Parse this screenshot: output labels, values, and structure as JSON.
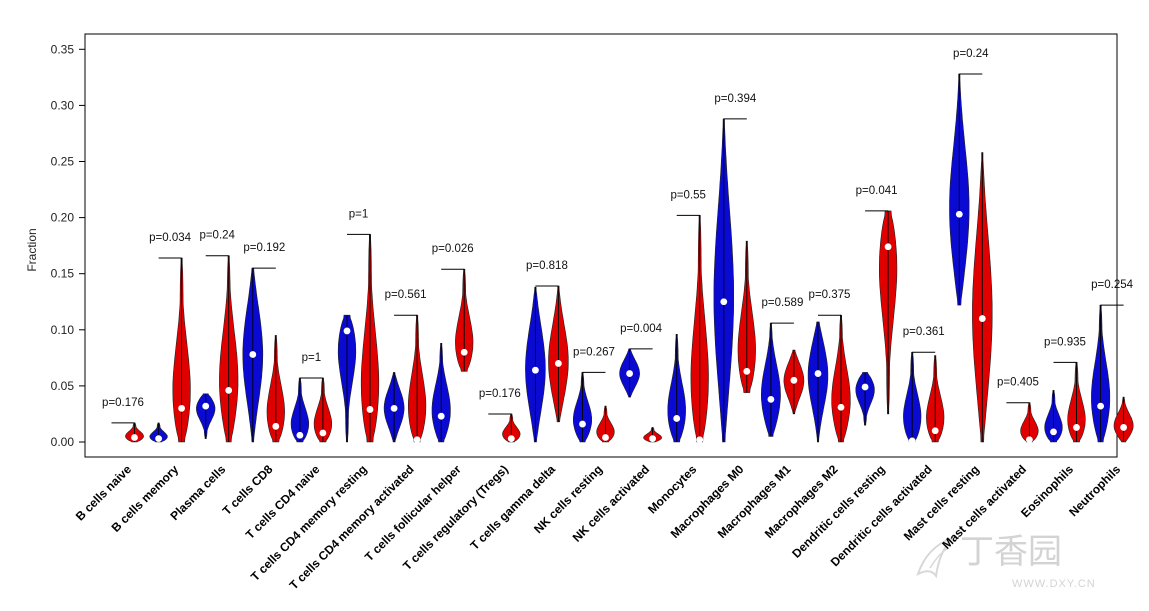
{
  "chart_data": {
    "type": "violin",
    "ylabel": "Fraction",
    "ylim": [
      0,
      0.36
    ],
    "yticks": [
      "0.00",
      "0.05",
      "0.10",
      "0.15",
      "0.20",
      "0.25",
      "0.30",
      "0.35"
    ],
    "grid": false,
    "colors": {
      "group1": "#0a0ad2",
      "group2": "#e00000"
    },
    "categories": [
      "B cells naive",
      "B cells memory",
      "Plasma cells",
      "T cells CD8",
      "T cells CD4 naive",
      "T cells CD4 memory resting",
      "T cells CD4 memory activated",
      "T cells follicular helper",
      "T cells regulatory (Tregs)",
      "T cells gamma delta",
      "NK cells resting",
      "NK cells activated",
      "Monocytes",
      "Macrophages M0",
      "Macrophages M1",
      "Macrophages M2",
      "Dendritic cells resting",
      "Dendritic cells activated",
      "Mast cells resting",
      "Mast cells activated",
      "Eosinophils",
      "Neutrophils"
    ],
    "pvalues": [
      "p=0.176",
      "p=0.034",
      "p=0.24",
      "p=0.192",
      "p=1",
      "p=1",
      "p=0.561",
      "p=0.026",
      "p=0.176",
      "p=0.818",
      "p=0.267",
      "p=0.004",
      "p=0.55",
      "p=0.394",
      "p=0.589",
      "p=0.375",
      "p=0.041",
      "p=0.361",
      "p=0.24",
      "p=0.405",
      "p=0.935",
      "p=0.254"
    ],
    "series": [
      {
        "min": [
          0,
          0,
          0.003,
          0,
          0,
          0,
          0,
          0,
          0,
          0,
          0,
          0.04,
          0,
          0,
          0.005,
          0,
          0.015,
          0,
          0.122,
          0,
          0,
          0
        ],
        "max": [
          0,
          0.017,
          0.043,
          0.155,
          0.057,
          0.113,
          0.062,
          0.088,
          0,
          0.138,
          0.062,
          0.083,
          0.096,
          0.288,
          0.106,
          0.107,
          0.062,
          0.08,
          0.328,
          0,
          0.046,
          0.122
        ],
        "median": [
          0,
          0.003,
          0.032,
          0.078,
          0.006,
          0.099,
          0.03,
          0.023,
          0,
          0.064,
          0.016,
          0.061,
          0.021,
          0.125,
          0.038,
          0.061,
          0.049,
          0.001,
          0.203,
          0,
          0.009,
          0.032
        ]
      },
      {
        "min": [
          0,
          0,
          0,
          0,
          0,
          0,
          0,
          0.063,
          0,
          0.018,
          0,
          0,
          0,
          0.044,
          0.025,
          0,
          0.025,
          0,
          0,
          0,
          0,
          0
        ],
        "max": [
          0.017,
          0.164,
          0.166,
          0.095,
          0.057,
          0.185,
          0.113,
          0.154,
          0.025,
          0.139,
          0.032,
          0.013,
          0.202,
          0.179,
          0.082,
          0.113,
          0.206,
          0.077,
          0.258,
          0.035,
          0.071,
          0.04
        ],
        "median": [
          0.004,
          0.03,
          0.046,
          0.014,
          0.008,
          0.029,
          0.002,
          0.08,
          0.003,
          0.07,
          0.004,
          0.003,
          0.002,
          0.063,
          0.055,
          0.031,
          0.174,
          0.01,
          0.11,
          0.002,
          0.013,
          0.013
        ]
      }
    ]
  },
  "watermark": {
    "text": "丁香园",
    "url": "WWW.DXY.CN"
  }
}
